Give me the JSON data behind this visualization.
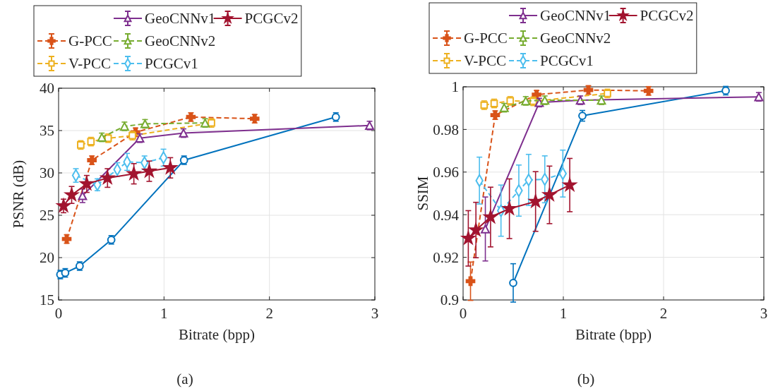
{
  "chart_data": [
    {
      "type": "line",
      "xlabel": "Bitrate (bpp)",
      "ylabel": "PSNR (dB)",
      "xlim": [
        0,
        3
      ],
      "xticks": [
        0,
        1,
        2,
        3
      ],
      "ylim": [
        15,
        40
      ],
      "yticks": [
        15,
        20,
        25,
        30,
        35,
        40
      ],
      "grid": true,
      "legend": "top",
      "annotations": [
        "(a)"
      ],
      "series": [
        {
          "color": "#0072bd",
          "marker": "circle",
          "line_style": "solid",
          "x": [
            0.016,
            0.063,
            0.2,
            0.5,
            1.19,
            2.63
          ],
          "values": [
            18.0,
            18.2,
            19.0,
            22.1,
            31.5,
            36.6
          ],
          "errors": [
            0.5,
            0.5,
            0.5,
            0.5,
            0.5,
            0.5
          ]
        },
        {
          "name": "G-PCC",
          "color": "#d95319",
          "marker": "cross",
          "line_style": "dashed",
          "x": [
            0.077,
            0.316,
            0.73,
            1.255,
            1.86
          ],
          "values": [
            22.2,
            31.5,
            34.8,
            36.6,
            36.4
          ],
          "errors": [
            0.5,
            0.5,
            0.5,
            0.5,
            0.5
          ]
        },
        {
          "name": "V-PCC",
          "color": "#edb120",
          "marker": "square",
          "line_style": "dashed",
          "x": [
            0.21,
            0.307,
            0.47,
            0.7,
            1.45
          ],
          "values": [
            33.3,
            33.7,
            34.1,
            34.4,
            35.9
          ],
          "errors": [
            0.5,
            0.5,
            0.5,
            0.5,
            0.5
          ]
        },
        {
          "name": "GeoCNNv1",
          "color": "#7e2f8e",
          "marker": "triangle",
          "line_style": "solid",
          "x": [
            0.227,
            0.77,
            1.185,
            2.95
          ],
          "values": [
            27.3,
            34.1,
            34.7,
            35.6
          ],
          "errors": [
            0.8,
            0.5,
            0.5,
            0.5
          ]
        },
        {
          "name": "GeoCNNv2",
          "color": "#77ac30",
          "marker": "triangle",
          "line_style": "dashed",
          "x": [
            0.41,
            0.625,
            0.82,
            1.39
          ],
          "values": [
            34.2,
            35.5,
            35.8,
            35.9
          ],
          "errors": [
            0.5,
            0.5,
            0.5,
            0.5
          ]
        },
        {
          "name": "PCGCv1",
          "color": "#4dbeee",
          "marker": "diamond",
          "line_style": "dashed",
          "x": [
            0.164,
            0.368,
            0.557,
            0.65,
            0.815,
            0.995
          ],
          "values": [
            29.7,
            28.6,
            30.4,
            31.3,
            31.2,
            31.8
          ],
          "errors": [
            0.8,
            0.7,
            0.8,
            1.0,
            0.8,
            1.0
          ]
        },
        {
          "name": "PCGCv2",
          "color": "#a2142f",
          "marker": "star",
          "line_style": "solid",
          "x": [
            0.047,
            0.124,
            0.267,
            0.464,
            0.714,
            0.86,
            1.06
          ],
          "values": [
            26.1,
            27.4,
            28.7,
            29.4,
            29.9,
            30.2,
            30.6
          ],
          "errors": [
            0.8,
            1.0,
            1.0,
            1.1,
            1.2,
            1.2,
            1.2
          ]
        }
      ]
    },
    {
      "type": "line",
      "xlabel": "Bitrate (bpp)",
      "ylabel": "SSIM",
      "xlim": [
        0,
        3
      ],
      "xticks": [
        0,
        1,
        2,
        3
      ],
      "ylim": [
        0.9,
        1
      ],
      "yticks": [
        0.9,
        0.92,
        0.94,
        0.96,
        0.98,
        1
      ],
      "grid": true,
      "legend": "top",
      "annotations": [
        "(b)"
      ],
      "series": [
        {
          "color": "#0072bd",
          "marker": "circle",
          "line_style": "solid",
          "x": [
            0.5,
            1.19,
            2.62
          ],
          "values": [
            0.908,
            0.9864,
            0.9982
          ],
          "errors": [
            0.009,
            0.0025,
            0.002
          ]
        },
        {
          "name": "G-PCC",
          "color": "#d95319",
          "marker": "cross",
          "line_style": "dashed",
          "x": [
            0.074,
            0.32,
            0.733,
            1.25,
            1.85
          ],
          "values": [
            0.9088,
            0.9867,
            0.9963,
            0.9985,
            0.9981
          ],
          "errors": [
            0.009,
            0.002,
            0.002,
            0.002,
            0.002
          ]
        },
        {
          "name": "V-PCC",
          "color": "#edb120",
          "marker": "square",
          "line_style": "dashed",
          "x": [
            0.21,
            0.31,
            0.47,
            0.7,
            1.44
          ],
          "values": [
            0.9914,
            0.9922,
            0.9934,
            0.9932,
            0.9969
          ],
          "errors": [
            0.002,
            0.002,
            0.002,
            0.002,
            0.002
          ]
        },
        {
          "name": "GeoCNNv1",
          "color": "#7e2f8e",
          "marker": "triangle",
          "line_style": "solid",
          "x": [
            0.222,
            0.76,
            1.17,
            2.95
          ],
          "values": [
            0.9333,
            0.9926,
            0.9937,
            0.9953
          ],
          "errors": [
            0.015,
            0.002,
            0.002,
            0.002
          ]
        },
        {
          "name": "GeoCNNv2",
          "color": "#77ac30",
          "marker": "triangle",
          "line_style": "dashed",
          "x": [
            0.41,
            0.625,
            0.815,
            1.38
          ],
          "values": [
            0.9902,
            0.9934,
            0.9937,
            0.9937
          ],
          "errors": [
            0.002,
            0.002,
            0.002,
            0.002
          ]
        },
        {
          "name": "PCGCv1",
          "color": "#4dbeee",
          "marker": "diamond",
          "line_style": "dashed",
          "x": [
            0.163,
            0.378,
            0.556,
            0.654,
            0.815,
            0.995
          ],
          "values": [
            0.956,
            0.9419,
            0.9513,
            0.9563,
            0.9566,
            0.9593
          ],
          "errors": [
            0.011,
            0.012,
            0.012,
            0.012,
            0.011,
            0.011
          ]
        },
        {
          "name": "PCGCv2",
          "color": "#a2142f",
          "marker": "star",
          "line_style": "solid",
          "x": [
            0.052,
            0.128,
            0.274,
            0.462,
            0.723,
            0.862,
            1.064
          ],
          "values": [
            0.9289,
            0.9328,
            0.9389,
            0.9428,
            0.9462,
            0.9493,
            0.9539
          ],
          "errors": [
            0.013,
            0.013,
            0.014,
            0.014,
            0.014,
            0.0135,
            0.0125
          ]
        }
      ]
    }
  ]
}
